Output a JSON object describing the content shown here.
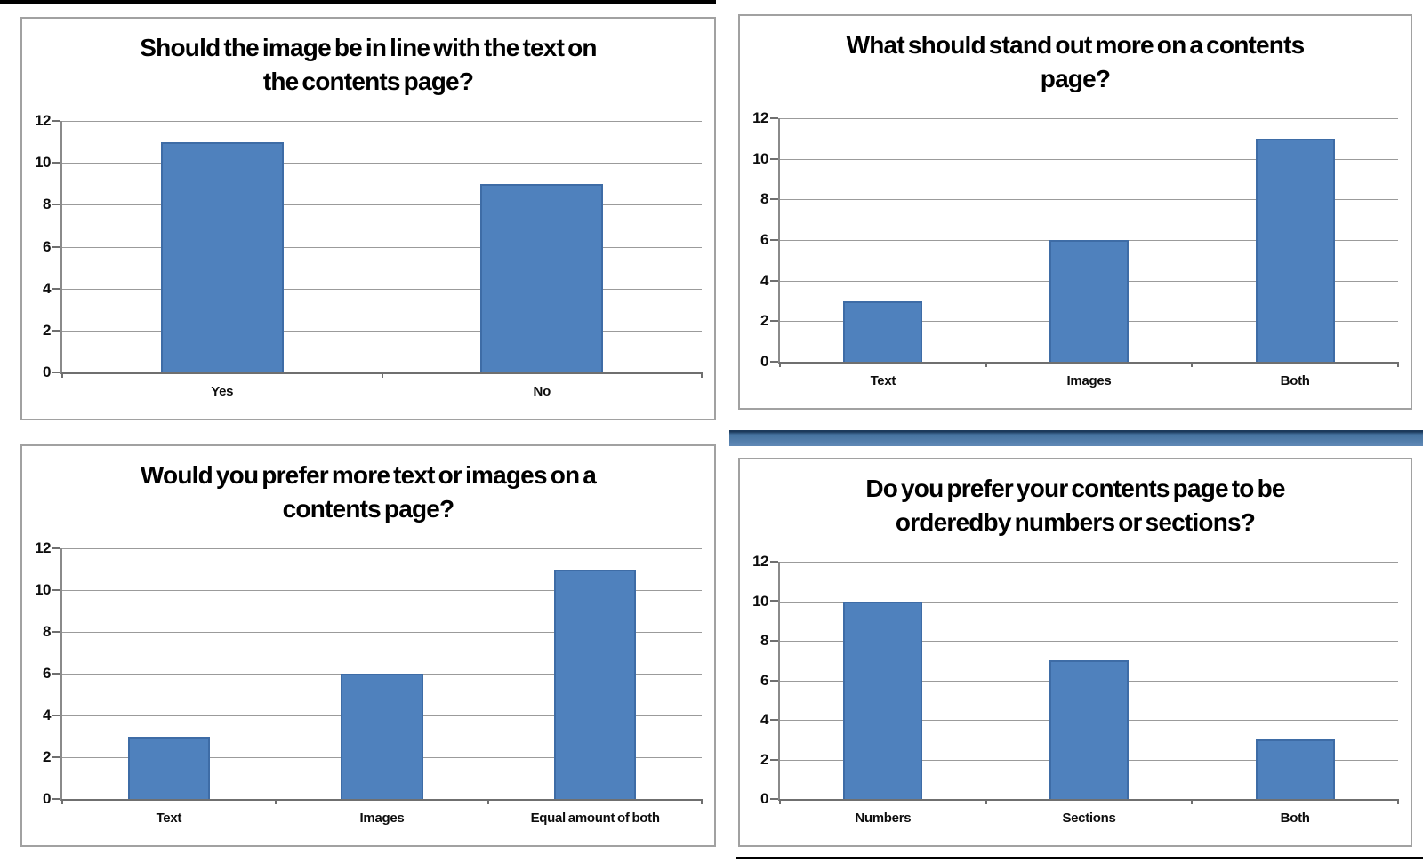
{
  "style": {
    "bar_fill": "#4f81bd",
    "bar_border": "#3e6ca6",
    "gridline_color": "#9b9b9b",
    "axis_color": "#8a8a8a",
    "tick_color": "#6f6f6f",
    "chart_border_color": "#a1a1a1",
    "rule_color": "#000000",
    "divider_top": "#1c3a5c",
    "divider_mid": "#44719e",
    "divider_bottom": "#6089b6"
  },
  "chart_data": [
    {
      "type": "bar",
      "title": "Should the image be in line with the text on\nthe contents page?",
      "categories": [
        "Yes",
        "No"
      ],
      "values": [
        11,
        9
      ],
      "xlabel": "",
      "ylabel": "",
      "ylim": [
        0,
        12
      ],
      "yticks": [
        0,
        2,
        4,
        6,
        8,
        10,
        12
      ],
      "grid": true,
      "legend": "none"
    },
    {
      "type": "bar",
      "title": "What should stand out more on a contents\npage?",
      "categories": [
        "Text",
        "Images",
        "Both"
      ],
      "values": [
        3,
        6,
        11
      ],
      "xlabel": "",
      "ylabel": "",
      "ylim": [
        0,
        12
      ],
      "yticks": [
        0,
        2,
        4,
        6,
        8,
        10,
        12
      ],
      "grid": true,
      "legend": "none"
    },
    {
      "type": "bar",
      "title": "Would you prefer more text or images on a\ncontents page?",
      "categories": [
        "Text",
        "Images",
        "Equal amount of both"
      ],
      "values": [
        3,
        6,
        11
      ],
      "xlabel": "",
      "ylabel": "",
      "ylim": [
        0,
        12
      ],
      "yticks": [
        0,
        2,
        4,
        6,
        8,
        10,
        12
      ],
      "grid": true,
      "legend": "none"
    },
    {
      "type": "bar",
      "title": "Do you prefer your contents page to be\norderedby numbers or sections?",
      "categories": [
        "Numbers",
        "Sections",
        "Both"
      ],
      "values": [
        10,
        7,
        3
      ],
      "xlabel": "",
      "ylabel": "",
      "ylim": [
        0,
        12
      ],
      "yticks": [
        0,
        2,
        4,
        6,
        8,
        10,
        12
      ],
      "grid": true,
      "legend": "none"
    }
  ]
}
